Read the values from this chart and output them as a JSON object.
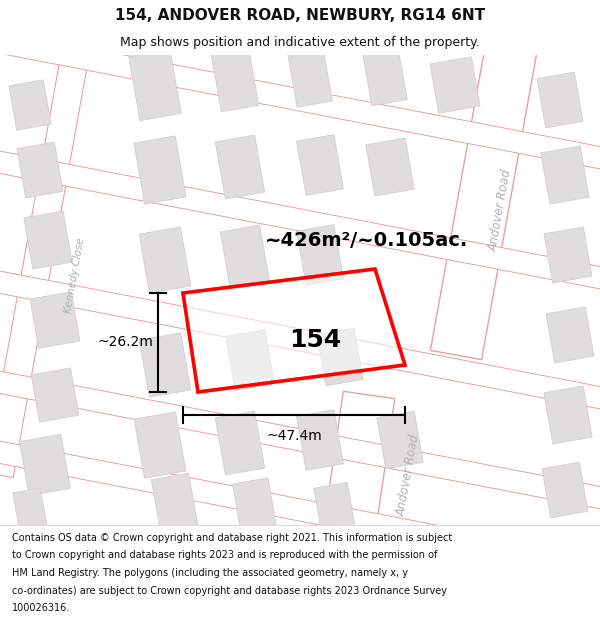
{
  "title": "154, ANDOVER ROAD, NEWBURY, RG14 6NT",
  "subtitle": "Map shows position and indicative extent of the property.",
  "footer_lines": [
    "Contains OS data © Crown copyright and database right 2021. This information is subject",
    "to Crown copyright and database rights 2023 and is reproduced with the permission of",
    "HM Land Registry. The polygons (including the associated geometry, namely x, y",
    "co-ordinates) are subject to Crown copyright and database rights 2023 Ordnance Survey",
    "100026316."
  ],
  "area_label": "~426m²/~0.105ac.",
  "property_number": "154",
  "width_label": "~47.4m",
  "height_label": "~26.2m",
  "bg_color": "#f8f7f5",
  "road_fill": "#ffffff",
  "road_line_color": "#e8a0a0",
  "building_fill": "#e0dedd",
  "building_edge": "#cccccc",
  "property_color": "#ff0000",
  "road_label_color": "#b0b0b0",
  "title_color": "#111111",
  "footer_color": "#111111",
  "title_fontsize": 11,
  "subtitle_fontsize": 9,
  "footer_fontsize": 7,
  "area_fontsize": 14,
  "number_fontsize": 18,
  "dim_fontsize": 10
}
